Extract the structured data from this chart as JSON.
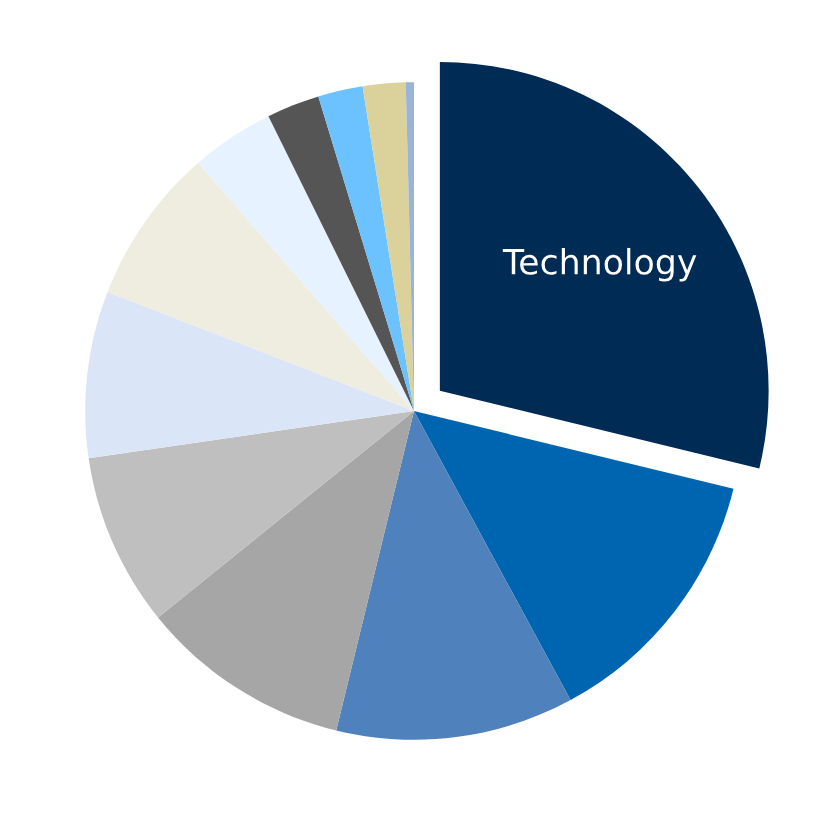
{
  "chart_data": {
    "type": "pie",
    "categories": [
      "Technology",
      null,
      null,
      null,
      null,
      null,
      null,
      null,
      null,
      null,
      null,
      null
    ],
    "values": [
      28.8,
      13.3,
      11.7,
      10.4,
      8.5,
      8.2,
      7.7,
      4.1,
      2.6,
      2.2,
      2.1,
      0.4
    ],
    "colors": [
      "#002b55",
      "#0065b0",
      "#4f81bd",
      "#a6a6a6",
      "#bfbfbf",
      "#dbe5f8",
      "#eeede0",
      "#e6f2ff",
      "#555555",
      "#6cc2ff",
      "#dbd19a",
      "#9ab4d8"
    ],
    "legend": false
  }
}
